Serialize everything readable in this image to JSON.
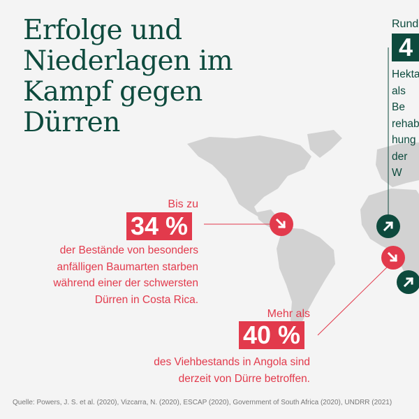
{
  "title": "Erfolge und\nNiederlagen im\nKampf gegen\nDürren",
  "colors": {
    "green": "#0d4a3d",
    "red": "#e23a4c",
    "map": "#d2d2d2",
    "background": "#f4f4f4"
  },
  "callout_costa_rica": {
    "prefix": "Bis zu",
    "value": "34 %",
    "description": "der Bestände von besonders\nanfälligen Baumarten starben\nwährend einer der schwersten\nDürren in Costa Rica.",
    "marker_icon": "arrow-down-right-icon"
  },
  "callout_angola": {
    "prefix": "Mehr als",
    "value": "40 %",
    "description": "des Viehbestands in Angola sind\nderzeit von Dürre betroffen.",
    "marker_icon": "arrow-down-right-icon"
  },
  "callout_right": {
    "prefix": "Rund",
    "value": "4",
    "description": "Hekta\nals Be\nrehab\nhung\nder W",
    "marker_icons": [
      "arrow-up-right-icon",
      "arrow-up-right-icon"
    ]
  },
  "source": "Quelle: Powers, J. S. et al. (2020), Vizcarra, N. (2020), ESCAP (2020), Government of South Africa (2020), UNDRR (2021)"
}
